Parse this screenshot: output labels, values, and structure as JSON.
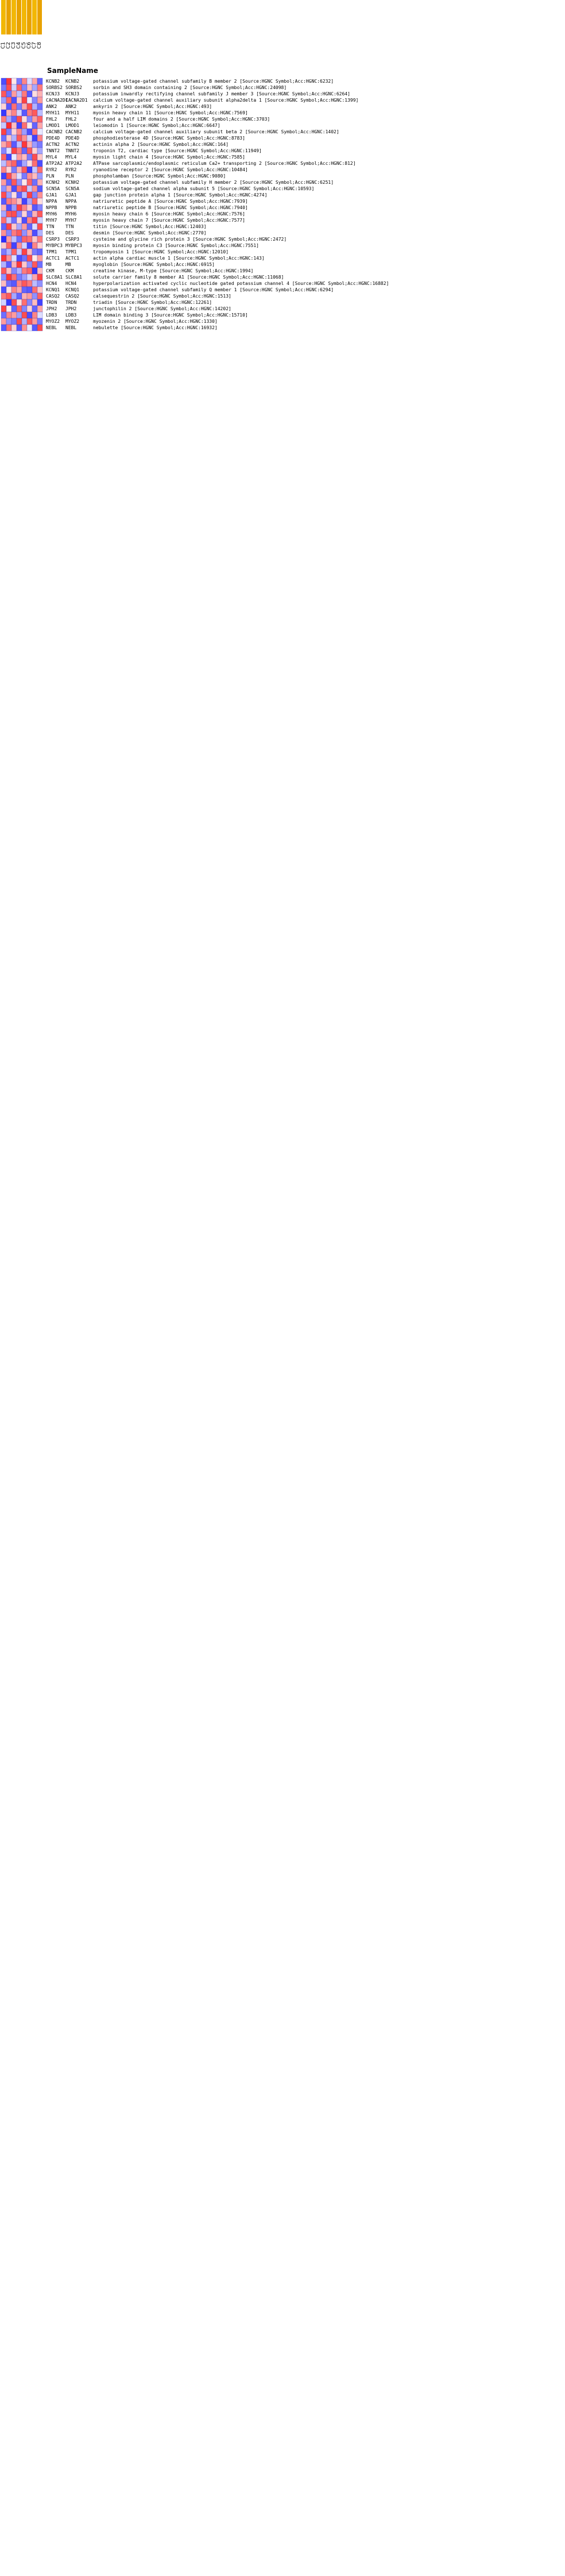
{
  "page": {
    "row_header": "SampleName"
  },
  "chart_data": {
    "type": "heatmap",
    "title": "",
    "row_header": "SampleName",
    "columns": [
      "C1",
      "C2",
      "C3",
      "C4",
      "C5",
      "C6",
      "C7",
      "C8"
    ],
    "color_scale": {
      "low": "#2222ff",
      "mid": "#ffffff",
      "high": "#ff2222",
      "range": [
        -2,
        2
      ]
    },
    "rows": [
      {
        "gene": "KCNB2",
        "sym": "KCNB2",
        "desc": "potassium voltage-gated channel subfamily B member 2 [Source:HGNC Symbol;Acc:HGNC:6232]",
        "values": [
          -1.6,
          1.8,
          0.2,
          -1.2,
          1.1,
          -0.3,
          0.8,
          -1.4
        ]
      },
      {
        "gene": "SORBS2",
        "sym": "SORBS2",
        "desc": "sorbin and SH3 domain containing 2 [Source:HGNC Symbol;Acc:HGNC:24098]",
        "values": [
          -1.2,
          1.6,
          -0.4,
          1.4,
          -1.1,
          0.6,
          -0.8,
          1.2
        ]
      },
      {
        "gene": "KCNJ3",
        "sym": "KCNJ3",
        "desc": "potassium inwardly rectifying channel subfamily J member 3 [Source:HGNC Symbol;Acc:HGNC:6264]",
        "values": [
          1.5,
          -1.3,
          0.9,
          -0.6,
          1.2,
          -1.5,
          0.3,
          0.7
        ]
      },
      {
        "gene": "CACNA2D1",
        "sym": "CACNA2D1",
        "desc": "calcium voltage-gated channel auxiliary subunit alpha2delta 1 [Source:HGNC Symbol;Acc:HGNC:1399]",
        "values": [
          -0.9,
          1.4,
          -1.6,
          0.5,
          1.7,
          -0.2,
          -1.1,
          0.9
        ]
      },
      {
        "gene": "ANK2",
        "sym": "ANK2",
        "desc": "ankyrin 2 [Source:HGNC Symbol;Acc:HGNC:493]",
        "values": [
          0.4,
          -1.5,
          1.3,
          -1.2,
          0.8,
          1.6,
          -0.7,
          -1.3
        ]
      },
      {
        "gene": "MYH11",
        "sym": "MYH11",
        "desc": "myosin heavy chain 11 [Source:HGNC Symbol;Acc:HGNC:7569]",
        "values": [
          -1.8,
          0.7,
          1.1,
          -0.4,
          -1.5,
          1.2,
          1.5,
          -0.6
        ]
      },
      {
        "gene": "FHL2",
        "sym": "FHL2",
        "desc": "four and a half LIM domains 2 [Source:HGNC Symbol;Acc:HGNC:3703]",
        "values": [
          1.2,
          -0.8,
          -1.4,
          1.6,
          0.3,
          -1.1,
          0.9,
          1.4
        ]
      },
      {
        "gene": "LMOD1",
        "sym": "LMOD1",
        "desc": "leiomodin 1 [Source:HGNC Symbol;Acc:HGNC:6647]",
        "values": [
          -0.5,
          1.9,
          0.6,
          -1.7,
          1.3,
          0.2,
          -1.4,
          0.8
        ]
      },
      {
        "gene": "CACNB2",
        "sym": "CACNB2",
        "desc": "calcium voltage-gated channel auxiliary subunit beta 2 [Source:HGNC Symbol;Acc:HGNC:1402]",
        "values": [
          1.7,
          -1.2,
          0.4,
          1.1,
          -0.9,
          -1.6,
          1.2,
          -0.2
        ]
      },
      {
        "gene": "PDE4D",
        "sym": "PDE4D",
        "desc": "phosphodiesterase 4D [Source:HGNC Symbol;Acc:HGNC:8783]",
        "values": [
          -1.3,
          0.5,
          -0.7,
          1.5,
          1.0,
          -0.4,
          -1.7,
          1.1
        ]
      },
      {
        "gene": "ACTN2",
        "sym": "ACTN2",
        "desc": "actinin alpha 2 [Source:HGNC Symbol;Acc:HGNC:164]",
        "values": [
          0.8,
          1.3,
          -1.5,
          -0.6,
          1.8,
          0.7,
          -0.9,
          -1.2
        ]
      },
      {
        "gene": "TNNT2",
        "sym": "TNNT2",
        "desc": "troponin T2, cardiac type [Source:HGNC Symbol;Acc:HGNC:11949]",
        "values": [
          -1.1,
          -0.3,
          1.7,
          1.2,
          -1.4,
          1.5,
          0.4,
          -0.8
        ]
      },
      {
        "gene": "MYL4",
        "sym": "MYL4",
        "desc": "myosin light chain 4 [Source:HGNC Symbol;Acc:HGNC:7585]",
        "values": [
          1.4,
          -1.7,
          -0.2,
          0.9,
          0.6,
          -1.2,
          1.6,
          0.5
        ]
      },
      {
        "gene": "ATP2A2",
        "sym": "ATP2A2",
        "desc": "ATPase sarcoplasmic/endoplasmic reticulum Ca2+ transporting 2 [Source:HGNC Symbol;Acc:HGNC:812]",
        "values": [
          -0.6,
          1.1,
          1.4,
          -1.5,
          -0.8,
          0.3,
          1.3,
          -1.6
        ]
      },
      {
        "gene": "RYR2",
        "sym": "RYR2",
        "desc": "ryanodine receptor 2 [Source:HGNC Symbol;Acc:HGNC:10484]",
        "values": [
          1.1,
          0.4,
          -1.2,
          0.7,
          1.5,
          -1.8,
          -0.5,
          1.3
        ]
      },
      {
        "gene": "PLN",
        "sym": "PLN",
        "desc": "phospholamban [Source:HGNC Symbol;Acc:HGNC:9080]",
        "values": [
          -1.7,
          1.6,
          0.8,
          -0.3,
          -1.2,
          1.0,
          0.6,
          -0.9
        ]
      },
      {
        "gene": "KCNH2",
        "sym": "KCNH2",
        "desc": "potassium voltage-gated channel subfamily H member 2 [Source:HGNC Symbol;Acc:HGNC:6251]",
        "values": [
          0.9,
          -1.4,
          1.5,
          -1.0,
          0.2,
          1.4,
          -1.3,
          0.7
        ]
      },
      {
        "gene": "SCN5A",
        "sym": "SCN5A",
        "desc": "sodium voltage-gated channel alpha subunit 5 [Source:HGNC Symbol;Acc:HGNC:10593]",
        "values": [
          -1.0,
          0.8,
          -1.6,
          1.3,
          1.6,
          -0.5,
          1.0,
          -1.5
        ]
      },
      {
        "gene": "GJA1",
        "sym": "GJA1",
        "desc": "gap junction protein alpha 1 [Source:HGNC Symbol;Acc:HGNC:4274]",
        "values": [
          1.6,
          -0.9,
          0.3,
          -1.4,
          -0.6,
          1.7,
          -1.1,
          1.0
        ]
      },
      {
        "gene": "NPPA",
        "sym": "NPPA",
        "desc": "natriuretic peptide A [Source:HGNC Symbol;Acc:HGNC:7939]",
        "values": [
          -1.5,
          1.2,
          1.0,
          0.6,
          -1.7,
          -0.8,
          1.4,
          0.3
        ]
      },
      {
        "gene": "NPPB",
        "sym": "NPPB",
        "desc": "natriuretic peptide B [Source:HGNC Symbol;Acc:HGNC:7940]",
        "values": [
          0.7,
          -1.6,
          -0.9,
          1.7,
          1.1,
          0.5,
          -1.5,
          -1.1
        ]
      },
      {
        "gene": "MYH6",
        "sym": "MYH6",
        "desc": "myosin heavy chain 6 [Source:HGNC Symbol;Acc:HGNC:7576]",
        "values": [
          -0.8,
          1.5,
          1.6,
          -1.1,
          0.4,
          -1.3,
          0.7,
          1.5
        ]
      },
      {
        "gene": "MYH7",
        "sym": "MYH7",
        "desc": "myosin heavy chain 7 [Source:HGNC Symbol;Acc:HGNC:7577]",
        "values": [
          1.3,
          -0.5,
          -1.3,
          0.4,
          -1.6,
          1.1,
          1.7,
          -0.4
        ]
      },
      {
        "gene": "TTN",
        "sym": "TTN",
        "desc": "titin [Source:HGNC Symbol;Acc:HGNC:12403]",
        "values": [
          -1.4,
          1.7,
          0.5,
          -0.8,
          0.9,
          -1.4,
          -0.3,
          1.6
        ]
      },
      {
        "gene": "DES",
        "sym": "DES",
        "desc": "desmin [Source:HGNC Symbol;Acc:HGNC:2770]",
        "values": [
          1.0,
          -1.1,
          1.2,
          1.5,
          -1.0,
          0.8,
          -1.6,
          -0.7
        ]
      },
      {
        "gene": "CSRP3",
        "sym": "CSRP3",
        "desc": "cysteine and glycine rich protein 3 [Source:HGNC Symbol;Acc:HGNC:2472]",
        "values": [
          -1.9,
          0.9,
          -0.6,
          -1.3,
          1.4,
          1.3,
          0.5,
          1.2
        ]
      },
      {
        "gene": "MYBPC3",
        "sym": "MYBPC3",
        "desc": "myosin binding protein C3 [Source:HGNC Symbol;Acc:HGNC:7551]",
        "values": [
          0.5,
          1.4,
          -1.7,
          1.0,
          -0.4,
          -1.7,
          1.1,
          0.4
        ]
      },
      {
        "gene": "TPM1",
        "sym": "TPM1",
        "desc": "tropomyosin 1 [Source:HGNC Symbol;Acc:HGNC:12010]",
        "values": [
          -1.2,
          -0.7,
          1.4,
          -0.5,
          1.7,
          0.6,
          -1.2,
          -1.4
        ]
      },
      {
        "gene": "ACTC1",
        "sym": "ACTC1",
        "desc": "actin alpha cardiac muscle 1 [Source:HGNC Symbol;Acc:HGNC:143]",
        "values": [
          1.8,
          1.0,
          -0.3,
          -1.6,
          -1.3,
          1.6,
          0.2,
          0.9
        ]
      },
      {
        "gene": "MB",
        "sym": "MB",
        "desc": "myoglobin [Source:HGNC Symbol;Acc:HGNC:6915]",
        "values": [
          -0.7,
          -1.5,
          0.7,
          1.8,
          0.5,
          -1.0,
          1.5,
          -1.3
        ]
      },
      {
        "gene": "CKM",
        "sym": "CKM",
        "desc": "creatine kinase, M-type [Source:HGNC Symbol;Acc:HGNC:1994]",
        "values": [
          1.5,
          0.6,
          -1.1,
          -0.7,
          1.2,
          1.4,
          -1.8,
          0.6
        ]
      },
      {
        "gene": "SLC8A1",
        "sym": "SLC8A1",
        "desc": "solute carrier family 8 member A1 [Source:HGNC Symbol;Acc:HGNC:11068]",
        "values": [
          -1.0,
          1.8,
          1.3,
          -1.2,
          -0.9,
          -0.4,
          0.8,
          1.7
        ]
      },
      {
        "gene": "HCN4",
        "sym": "HCN4",
        "desc": "hyperpolarization activated cyclic nucleotide gated potassium channel 4 [Source:HGNC Symbol;Acc:HGNC:16882]",
        "values": [
          0.6,
          -1.3,
          -1.5,
          1.1,
          1.5,
          1.2,
          -0.6,
          -1.0
        ]
      },
      {
        "gene": "KCNQ1",
        "sym": "KCNQ1",
        "desc": "potassium voltage-gated channel subfamily Q member 1 [Source:HGNC Symbol;Acc:HGNC:6294]",
        "values": [
          -1.6,
          0.3,
          1.1,
          0.8,
          -1.4,
          -1.5,
          1.3,
          0.5
        ]
      },
      {
        "gene": "CASQ2",
        "sym": "CASQ2",
        "desc": "calsequestrin 2 [Source:HGNC Symbol;Acc:HGNC:1513]",
        "values": [
          1.2,
          1.5,
          -0.8,
          -1.4,
          0.7,
          0.9,
          -1.0,
          1.4
        ]
      },
      {
        "gene": "TRDN",
        "sym": "TRDN",
        "desc": "triadin [Source:HGNC Symbol;Acc:HGNC:12261]",
        "values": [
          -0.4,
          -1.8,
          1.6,
          0.3,
          1.3,
          -1.1,
          0.6,
          -1.7
        ]
      },
      {
        "gene": "JPH2",
        "sym": "JPH2",
        "desc": "junctophilin 2 [Source:HGNC Symbol;Acc:HGNC:14202]",
        "values": [
          1.7,
          0.2,
          -1.4,
          1.4,
          -1.1,
          0.4,
          -1.4,
          0.8
        ]
      },
      {
        "gene": "LDB3",
        "sym": "LDB3",
        "desc": "LIM domain binding 3 [Source:HGNC Symbol;Acc:HGNC:15710]",
        "values": [
          -1.3,
          1.1,
          0.9,
          -0.9,
          1.6,
          -1.6,
          1.1,
          -0.3
        ]
      },
      {
        "gene": "MYOZ2",
        "sym": "MYOZ2",
        "desc": "myozenin 2 [Source:HGNC Symbol;Acc:HGNC:1330]",
        "values": [
          0.9,
          -1.0,
          -1.2,
          1.6,
          -0.7,
          1.5,
          0.9,
          -1.2
        ]
      },
      {
        "gene": "NEBL",
        "sym": "NEBL",
        "desc": "nebulette [Source:HGNC Symbol;Acc:HGNC:16932]",
        "values": [
          -1.5,
          1.3,
          0.4,
          -1.5,
          1.0,
          -0.2,
          -1.5,
          1.6
        ]
      }
    ]
  }
}
